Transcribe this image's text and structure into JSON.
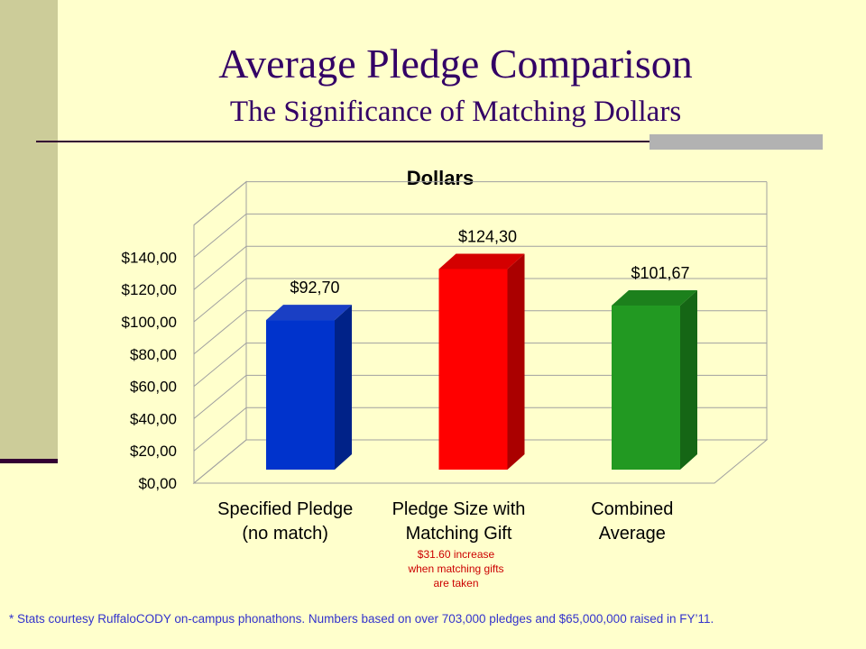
{
  "slide": {
    "title": "Average Pledge Comparison",
    "subtitle": "The Significance of Matching Dollars",
    "footnote": "* Stats courtesy RuffaloCODY on-campus phonathons.  Numbers based on over 703,000 pledges and $65,000,000 raised in FY’11."
  },
  "colors": {
    "background": "#ffffcc",
    "sidebar": "#cccc99",
    "title_text": "#330066",
    "footnote_text": "#3333cc",
    "annotation_text": "#cc0000"
  },
  "chart_data": {
    "type": "bar",
    "style": "3d",
    "title": "Dollars",
    "categories": [
      [
        "Specified Pledge",
        "(no match)"
      ],
      [
        "Pledge Size with",
        "Matching Gift"
      ],
      [
        "Combined",
        "Average"
      ]
    ],
    "values": [
      92.7,
      124.3,
      101.67
    ],
    "data_labels": [
      "$92,70",
      "$124,30",
      "$101,67"
    ],
    "bar_colors": [
      {
        "front": "#0033cc",
        "side": "#002288",
        "top": "#1a3fc4"
      },
      {
        "front": "#ff0000",
        "side": "#aa0000",
        "top": "#d40000"
      },
      {
        "front": "#229922",
        "side": "#156615",
        "top": "#1c801c"
      }
    ],
    "yticks": [
      "$0,00",
      "$20,00",
      "$40,00",
      "$60,00",
      "$80,00",
      "$100,00",
      "$120,00",
      "$140,00"
    ],
    "ylim": [
      0,
      160
    ],
    "grid": true,
    "legend": "none",
    "annotation": {
      "category_index": 1,
      "lines": [
        "$31.60 increase",
        "when matching gifts",
        "are taken"
      ]
    }
  }
}
